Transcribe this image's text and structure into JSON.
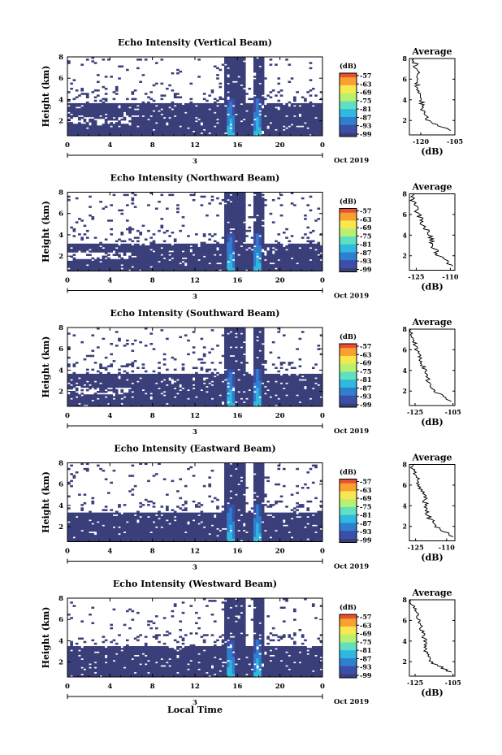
{
  "figure": {
    "xlabel": "Local Time",
    "date_label": "Oct 2019",
    "day_label": "3",
    "colorbar_unit": "(dB)",
    "colorbar_ticks": [
      "-57",
      "-63",
      "-69",
      "-75",
      "-81",
      "-87",
      "-93",
      "-99"
    ],
    "colors": {
      "background_echo": "#3a3f7a",
      "colormap": [
        "#3a3f7a",
        "#3b4fa8",
        "#2f7fd0",
        "#2fb8e0",
        "#5fe0c0",
        "#b8f070",
        "#f8e850",
        "#f8a030",
        "#e85030"
      ]
    }
  },
  "chart_data": [
    {
      "type": "heatmap",
      "title": "Echo Intensity (Vertical Beam)",
      "ylabel": "Height (km)",
      "x_ticks": [
        "0",
        "4",
        "8",
        "12",
        "16",
        "20",
        "0"
      ],
      "y_ticks": [
        "2",
        "4",
        "6",
        "8"
      ],
      "xlim": [
        0,
        24
      ],
      "ylim": [
        0.6,
        8
      ],
      "echo_top_km": 3.7,
      "high_echo_times": [
        15.3,
        16.2,
        17.9
      ],
      "average": {
        "title": "Average",
        "xlabel": "(dB)",
        "x_ticks": [
          "-120",
          "-105"
        ],
        "xlim": [
          -125,
          -105
        ],
        "heights": [
          1,
          2,
          3,
          4,
          5,
          6,
          7,
          8
        ],
        "values": [
          -107,
          -117,
          -119,
          -120,
          -122,
          -121,
          -122,
          -123
        ]
      }
    },
    {
      "type": "heatmap",
      "title": "Echo Intensity (Northward Beam)",
      "ylabel": "Height (km)",
      "x_ticks": [
        "0",
        "4",
        "8",
        "12",
        "16",
        "20",
        "0"
      ],
      "y_ticks": [
        "2",
        "4",
        "6",
        "8"
      ],
      "xlim": [
        0,
        24
      ],
      "ylim": [
        0.6,
        8
      ],
      "echo_top_km": 3.2,
      "high_echo_times": [
        15.3,
        16.2,
        17.9
      ],
      "average": {
        "title": "Average",
        "xlabel": "(dB)",
        "x_ticks": [
          "-125",
          "-110"
        ],
        "xlim": [
          -128,
          -108
        ],
        "heights": [
          1,
          2,
          3,
          4,
          5,
          6,
          7,
          8
        ],
        "values": [
          -109,
          -115,
          -118,
          -119,
          -122,
          -124,
          -126,
          -127
        ]
      }
    },
    {
      "type": "heatmap",
      "title": "Echo Intensity (Southward Beam)",
      "ylabel": "Height (km)",
      "x_ticks": [
        "0",
        "4",
        "8",
        "12",
        "16",
        "20",
        "0"
      ],
      "y_ticks": [
        "2",
        "4",
        "6",
        "8"
      ],
      "xlim": [
        0,
        24
      ],
      "ylim": [
        0.6,
        8
      ],
      "echo_top_km": 3.6,
      "high_echo_times": [
        15.3,
        16.2,
        17.9
      ],
      "average": {
        "title": "Average",
        "xlabel": "(dB)",
        "x_ticks": [
          "-125",
          "-105"
        ],
        "xlim": [
          -128,
          -104
        ],
        "heights": [
          1,
          2,
          3,
          4,
          5,
          6,
          7,
          8
        ],
        "values": [
          -106,
          -115,
          -118,
          -120,
          -122,
          -124,
          -126,
          -127
        ]
      }
    },
    {
      "type": "heatmap",
      "title": "Echo Intensity (Eastward Beam)",
      "ylabel": "Height (km)",
      "x_ticks": [
        "0",
        "4",
        "8",
        "12",
        "16",
        "20",
        "0"
      ],
      "y_ticks": [
        "2",
        "4",
        "6",
        "8"
      ],
      "xlim": [
        0,
        24
      ],
      "ylim": [
        0.6,
        8
      ],
      "echo_top_km": 3.3,
      "high_echo_times": [
        15.3,
        16.2,
        17.9
      ],
      "average": {
        "title": "Average",
        "xlabel": "(dB)",
        "x_ticks": [
          "-125",
          "-110"
        ],
        "xlim": [
          -128,
          -106
        ],
        "heights": [
          1,
          2,
          3,
          4,
          5,
          6,
          7,
          8
        ],
        "values": [
          -107,
          -115,
          -119,
          -120,
          -121,
          -123,
          -125,
          -127
        ]
      }
    },
    {
      "type": "heatmap",
      "title": "Echo Intensity (Westward Beam)",
      "ylabel": "Height (km)",
      "x_ticks": [
        "0",
        "4",
        "8",
        "12",
        "16",
        "20",
        "0"
      ],
      "y_ticks": [
        "2",
        "4",
        "6",
        "8"
      ],
      "xlim": [
        0,
        24
      ],
      "ylim": [
        0.6,
        8
      ],
      "echo_top_km": 3.5,
      "high_echo_times": [
        15.3,
        16.2,
        17.9
      ],
      "average": {
        "title": "Average",
        "xlabel": "(dB)",
        "x_ticks": [
          "-125",
          "-105"
        ],
        "xlim": [
          -128,
          -104
        ],
        "heights": [
          1,
          2,
          3,
          4,
          5,
          6,
          7,
          8
        ],
        "values": [
          -106,
          -117,
          -119,
          -120,
          -121,
          -123,
          -125,
          -127
        ]
      }
    }
  ]
}
